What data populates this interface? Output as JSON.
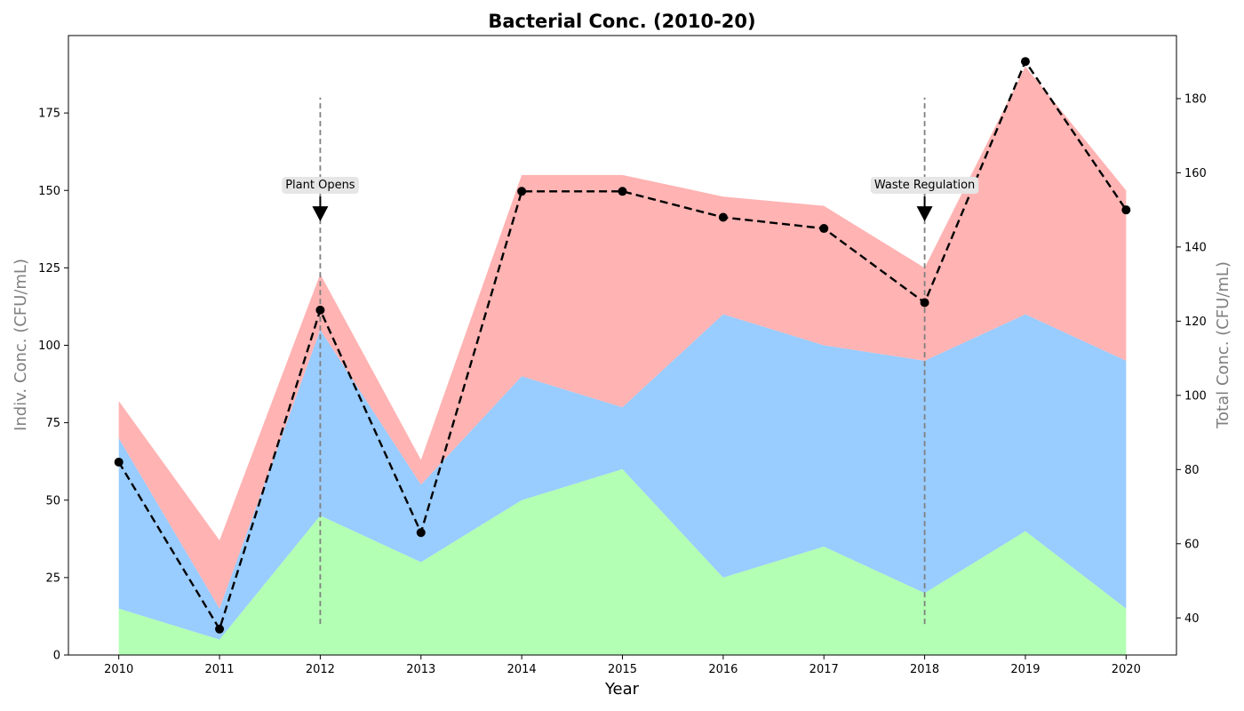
{
  "chart_data": {
    "type": "area",
    "title": "Bacterial Conc. (2010-20)",
    "xlabel": "Year",
    "ylabel_left": "Indiv. Conc. (CFU/mL)",
    "ylabel_right": "Total Conc. (CFU/mL)",
    "x": [
      2010,
      2011,
      2012,
      2013,
      2014,
      2015,
      2016,
      2017,
      2018,
      2019,
      2020
    ],
    "x_ticks": [
      "2010",
      "2011",
      "2012",
      "2013",
      "2014",
      "2015",
      "2016",
      "2017",
      "2018",
      "2019",
      "2020"
    ],
    "ylim_left": [
      0,
      200
    ],
    "yticks_left": [
      0,
      25,
      50,
      75,
      100,
      125,
      150,
      175
    ],
    "ylim_right": [
      30,
      197
    ],
    "yticks_right": [
      40,
      60,
      80,
      100,
      120,
      140,
      160,
      180
    ],
    "stacked_series": [
      {
        "color": "#b3ffb3",
        "values": [
          15,
          5,
          45,
          30,
          50,
          60,
          25,
          35,
          20,
          40,
          15
        ]
      },
      {
        "color": "#99ccff",
        "values": [
          55,
          10,
          60,
          25,
          40,
          20,
          85,
          65,
          75,
          70,
          80
        ]
      },
      {
        "color": "#ffb3b3",
        "values": [
          12,
          22,
          18,
          8,
          65,
          75,
          38,
          45,
          30,
          80,
          55
        ]
      }
    ],
    "total_line": {
      "color": "#000000",
      "style": "dashed",
      "marker": "circle",
      "values": [
        82,
        37,
        123,
        63,
        155,
        155,
        148,
        145,
        125,
        190,
        150
      ]
    },
    "annotations": [
      {
        "x": 2012,
        "text": "Plant Opens",
        "line_color": "#808080",
        "arrow_target_left": 140
      },
      {
        "x": 2018,
        "text": "Waste Regulation",
        "line_color": "#808080",
        "arrow_target_left": 140
      }
    ],
    "annotation_line_range_left": [
      10,
      180
    ],
    "grid": false,
    "legend": "none"
  }
}
